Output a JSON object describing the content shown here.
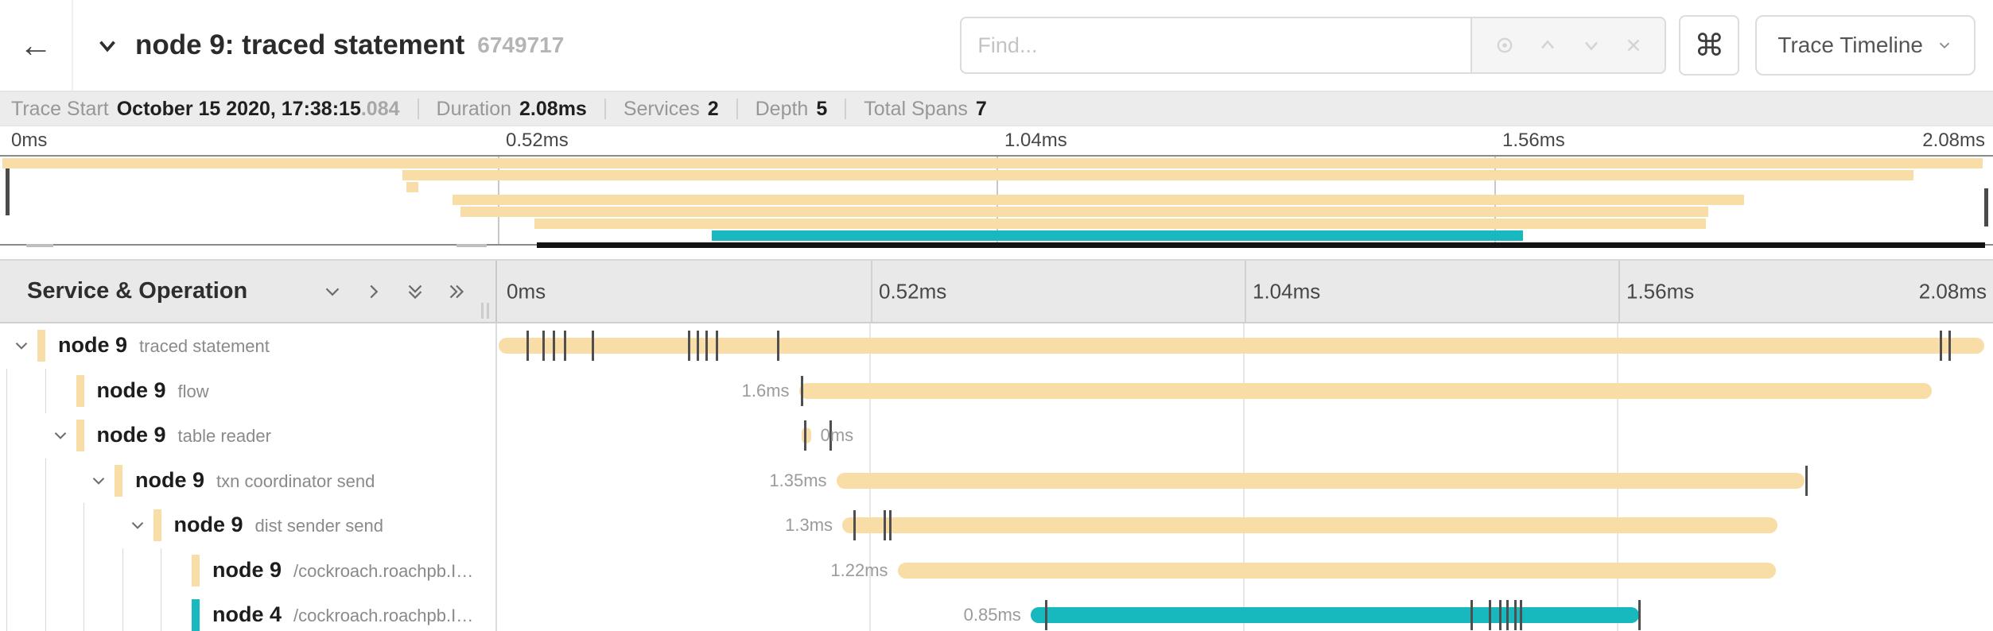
{
  "header": {
    "back_label": "←",
    "title": "node 9: traced statement",
    "trace_id": "6749717",
    "find": {
      "placeholder": "Find..."
    },
    "shortcut_icon": "⌘",
    "view_dropdown": {
      "label": "Trace Timeline"
    }
  },
  "summary": {
    "items": [
      {
        "label": "Trace Start",
        "value": "October 15 2020, 17:38:15",
        "suffix": ".084"
      },
      {
        "label": "Duration",
        "value": "2.08ms"
      },
      {
        "label": "Services",
        "value": "2"
      },
      {
        "label": "Depth",
        "value": "5"
      },
      {
        "label": "Total Spans",
        "value": "7"
      }
    ]
  },
  "timeline_ticks": [
    "0ms",
    "0.52ms",
    "1.04ms",
    "1.56ms",
    "2.08ms"
  ],
  "left_panel": {
    "title": "Service & Operation"
  },
  "colors": {
    "node9": "#F8DDA6",
    "node4": "#17B8BE"
  },
  "spans": [
    {
      "service": "node 9",
      "operation": "traced statement",
      "color": "#F8DDA6",
      "level": 0,
      "expandable": true,
      "start": 0.001,
      "end": 0.995,
      "duration_label": "",
      "label_side": "none",
      "ticks": [
        0.02,
        0.031,
        0.038,
        0.045,
        0.064,
        0.128,
        0.134,
        0.14,
        0.147,
        0.188,
        0.966,
        0.972
      ]
    },
    {
      "service": "node 9",
      "operation": "flow",
      "color": "#F8DDA6",
      "level": 1,
      "expandable": false,
      "start": 0.202,
      "end": 0.96,
      "duration_label": "1.6ms",
      "label_side": "left",
      "ticks": [
        0.204
      ]
    },
    {
      "service": "node 9",
      "operation": "table reader",
      "color": "#F8DDA6",
      "level": 1,
      "expandable": true,
      "start": 0.204,
      "end": 0.21,
      "duration_label": "0ms",
      "label_side": "right",
      "ticks": [
        0.206,
        0.223
      ]
    },
    {
      "service": "node 9",
      "operation": "txn coordinator send",
      "color": "#F8DDA6",
      "level": 2,
      "expandable": true,
      "start": 0.227,
      "end": 0.875,
      "duration_label": "1.35ms",
      "label_side": "left",
      "ticks": [
        0.876
      ]
    },
    {
      "service": "node 9",
      "operation": "dist sender send",
      "color": "#F8DDA6",
      "level": 3,
      "expandable": true,
      "start": 0.231,
      "end": 0.857,
      "duration_label": "1.3ms",
      "label_side": "left",
      "ticks": [
        0.239,
        0.259,
        0.263
      ]
    },
    {
      "service": "node 9",
      "operation": "/cockroach.roachpb.I…",
      "color": "#F8DDA6",
      "level": 4,
      "expandable": false,
      "start": 0.268,
      "end": 0.856,
      "duration_label": "1.22ms",
      "label_side": "left",
      "ticks": []
    },
    {
      "service": "node 4",
      "operation": "/cockroach.roachpb.I…",
      "color": "#17B8BE",
      "level": 4,
      "expandable": false,
      "start": 0.357,
      "end": 0.764,
      "duration_label": "0.85ms",
      "label_side": "left",
      "ticks": [
        0.367,
        0.652,
        0.664,
        0.671,
        0.676,
        0.681,
        0.685,
        0.764
      ]
    }
  ]
}
